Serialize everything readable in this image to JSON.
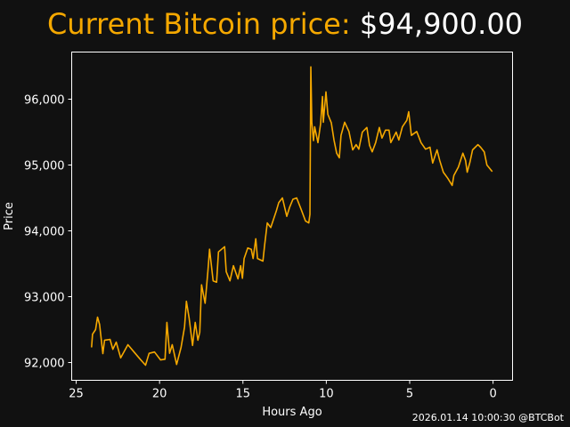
{
  "header": {
    "label": "Current Bitcoin price:",
    "value": "$94,900.00"
  },
  "footer": {
    "timestamp": "2026.01.14 10:00:30 @BTCBot"
  },
  "colors": {
    "line": "#f5a800",
    "background": "#111111",
    "axes": "#ffffff"
  },
  "chart_data": {
    "type": "line",
    "title": "Current Bitcoin price: $94,900.00",
    "xlabel": "Hours Ago",
    "ylabel": "Price",
    "xlim": [
      25.27,
      -1.17
    ],
    "ylim": [
      91730,
      96716
    ],
    "x_ticks": [
      25,
      20,
      15,
      10,
      5,
      0
    ],
    "x_tick_labels": [
      "25",
      "20",
      "15",
      "10",
      "5",
      "0"
    ],
    "y_ticks": [
      92000,
      93000,
      94000,
      95000,
      96000
    ],
    "y_tick_labels": [
      "92,000",
      "93,000",
      "94,000",
      "95,000",
      "96,000"
    ],
    "grid": false,
    "series": [
      {
        "name": "Price",
        "x": [
          24.08,
          24.02,
          23.84,
          23.72,
          23.6,
          23.4,
          23.3,
          22.97,
          22.8,
          22.6,
          22.33,
          21.9,
          21.53,
          21.16,
          20.84,
          20.63,
          20.3,
          19.94,
          19.67,
          19.56,
          19.4,
          19.24,
          18.98,
          18.71,
          18.5,
          18.39,
          18.23,
          18.02,
          17.86,
          17.7,
          17.59,
          17.48,
          17.27,
          17.1,
          17.0,
          16.79,
          16.58,
          16.47,
          16.1,
          16.0,
          15.78,
          15.57,
          15.3,
          15.14,
          15.03,
          14.93,
          14.71,
          14.5,
          14.39,
          14.23,
          14.13,
          13.8,
          13.7,
          13.54,
          13.33,
          13.0,
          12.85,
          12.63,
          12.37,
          12.2,
          12.0,
          11.78,
          11.5,
          11.25,
          11.05,
          10.98,
          10.93,
          10.87,
          10.82,
          10.77,
          10.7,
          10.5,
          10.34,
          10.23,
          10.18,
          10.02,
          9.91,
          9.7,
          9.54,
          9.38,
          9.22,
          9.12,
          8.9,
          8.64,
          8.42,
          8.21,
          8.05,
          7.84,
          7.57,
          7.41,
          7.25,
          7.04,
          6.82,
          6.66,
          6.45,
          6.24,
          6.13,
          5.81,
          5.65,
          5.44,
          5.17,
          5.06,
          4.9,
          4.58,
          4.32,
          4.05,
          3.78,
          3.62,
          3.36,
          3.2,
          2.98,
          2.72,
          2.45,
          2.35,
          2.08,
          1.81,
          1.65,
          1.55,
          1.39,
          1.23,
          0.91,
          0.75,
          0.53,
          0.37,
          0.05
        ],
        "y": [
          92230,
          92430,
          92500,
          92690,
          92580,
          92135,
          92340,
          92350,
          92200,
          92310,
          92070,
          92270,
          92160,
          92050,
          91960,
          92140,
          92160,
          92040,
          92050,
          92610,
          92140,
          92270,
          91970,
          92230,
          92540,
          92930,
          92680,
          92260,
          92610,
          92340,
          92460,
          93180,
          92900,
          93400,
          93720,
          93240,
          93220,
          93680,
          93760,
          93380,
          93240,
          93470,
          93270,
          93470,
          93280,
          93580,
          93740,
          93720,
          93580,
          93880,
          93580,
          93540,
          93780,
          94120,
          94050,
          94300,
          94430,
          94500,
          94220,
          94360,
          94480,
          94500,
          94320,
          94150,
          94120,
          94250,
          96490,
          95650,
          95510,
          95370,
          95580,
          95340,
          95630,
          96040,
          95650,
          96110,
          95770,
          95640,
          95380,
          95180,
          95110,
          95450,
          95650,
          95510,
          95230,
          95310,
          95240,
          95500,
          95570,
          95300,
          95200,
          95340,
          95570,
          95410,
          95530,
          95530,
          95340,
          95500,
          95380,
          95580,
          95680,
          95810,
          95450,
          95510,
          95340,
          95240,
          95270,
          95030,
          95230,
          95070,
          94890,
          94800,
          94690,
          94840,
          94970,
          95180,
          95070,
          94890,
          95040,
          95230,
          95310,
          95270,
          95200,
          95000,
          94900
        ]
      }
    ]
  }
}
